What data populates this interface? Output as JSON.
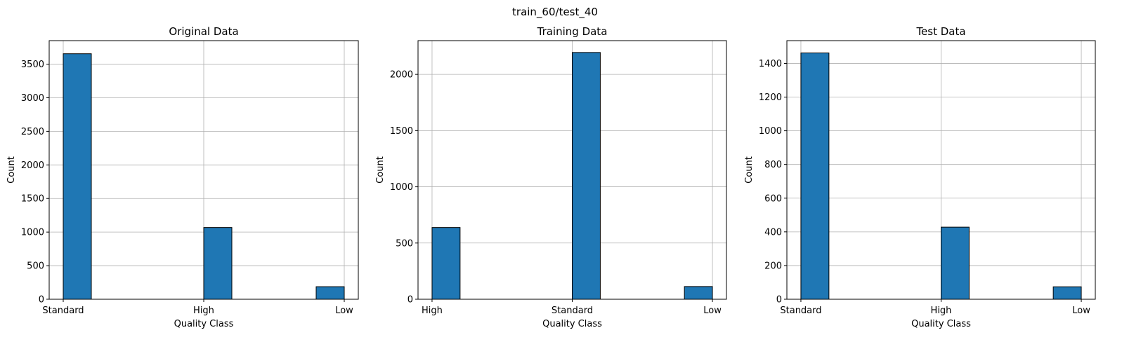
{
  "figure_title": "train_60/test_40",
  "colors": {
    "bar": "#1f77b4",
    "edge": "#000000",
    "grid": "#b0b0b0"
  },
  "chart_data": [
    {
      "type": "bar",
      "title": "Original Data",
      "xlabel": "Quality Class",
      "ylabel": "Count",
      "categories": [
        "Standard",
        "High",
        "Low"
      ],
      "values": [
        3655,
        1068,
        187
      ],
      "ylim": [
        0,
        3850
      ],
      "yticks": [
        0,
        500,
        1000,
        1500,
        2000,
        2500,
        3000,
        3500
      ],
      "grid": true
    },
    {
      "type": "bar",
      "title": "Training Data",
      "xlabel": "Quality Class",
      "ylabel": "Count",
      "categories": [
        "High",
        "Standard",
        "Low"
      ],
      "values": [
        638,
        2195,
        113
      ],
      "ylim": [
        0,
        2300
      ],
      "yticks": [
        0,
        500,
        1000,
        1500,
        2000
      ],
      "grid": true
    },
    {
      "type": "bar",
      "title": "Test Data",
      "xlabel": "Quality Class",
      "ylabel": "Count",
      "categories": [
        "Standard",
        "High",
        "Low"
      ],
      "values": [
        1462,
        428,
        74
      ],
      "ylim": [
        0,
        1535
      ],
      "yticks": [
        0,
        200,
        400,
        600,
        800,
        1000,
        1200,
        1400
      ],
      "grid": true
    }
  ]
}
